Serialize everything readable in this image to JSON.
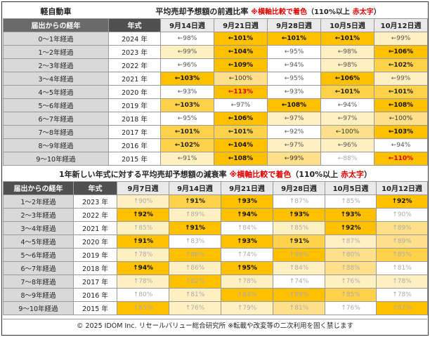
{
  "table1": {
    "category": "軽自動車",
    "title": "平均売却予想額の前週比率",
    "note_prefix": "※横軸比較で着色",
    "note_suffix_open": "（110%以上",
    "note_red": "赤太字",
    "note_suffix_close": "）",
    "col_elapsed": "届出からの経年",
    "col_year": "年式",
    "weeks": [
      "9月14日週",
      "9月21日週",
      "9月28日週",
      "10月5日週",
      "10月12日週"
    ],
    "rows": [
      {
        "elapsed": "0～1年経過",
        "year": "2024 年",
        "cells": [
          {
            "t": "←98%",
            "c": 1,
            "s": ""
          },
          {
            "t": "←101%",
            "c": 5,
            "s": "b"
          },
          {
            "t": "←101%",
            "c": 5,
            "s": "b"
          },
          {
            "t": "←101%",
            "c": 5,
            "s": "b"
          },
          {
            "t": "←99%",
            "c": 2,
            "s": ""
          }
        ]
      },
      {
        "elapsed": "1～2年経過",
        "year": "2023 年",
        "cells": [
          {
            "t": "←99%",
            "c": 2,
            "s": ""
          },
          {
            "t": "←104%",
            "c": 5,
            "s": "b"
          },
          {
            "t": "←95%",
            "c": 1,
            "s": ""
          },
          {
            "t": "←98%",
            "c": 2,
            "s": ""
          },
          {
            "t": "←106%",
            "c": 5,
            "s": "b"
          }
        ]
      },
      {
        "elapsed": "2～3年経過",
        "year": "2022 年",
        "cells": [
          {
            "t": "←96%",
            "c": 1,
            "s": ""
          },
          {
            "t": "←109%",
            "c": 5,
            "s": "b"
          },
          {
            "t": "←94%",
            "c": 1,
            "s": ""
          },
          {
            "t": "←98%",
            "c": 2,
            "s": ""
          },
          {
            "t": "←102%",
            "c": 4,
            "s": "b"
          }
        ]
      },
      {
        "elapsed": "3～4年経過",
        "year": "2021 年",
        "cells": [
          {
            "t": "←103%",
            "c": 5,
            "s": "b"
          },
          {
            "t": "←100%",
            "c": 3,
            "s": ""
          },
          {
            "t": "←95%",
            "c": 1,
            "s": ""
          },
          {
            "t": "←106%",
            "c": 5,
            "s": "b"
          },
          {
            "t": "←99%",
            "c": 2,
            "s": ""
          }
        ]
      },
      {
        "elapsed": "4～5年経過",
        "year": "2020 年",
        "cells": [
          {
            "t": "←93%",
            "c": 1,
            "s": ""
          },
          {
            "t": "←113%",
            "c": 5,
            "s": "r"
          },
          {
            "t": "←93%",
            "c": 1,
            "s": ""
          },
          {
            "t": "←101%",
            "c": 4,
            "s": "b"
          },
          {
            "t": "←101%",
            "c": 4,
            "s": "b"
          }
        ]
      },
      {
        "elapsed": "5～6年経過",
        "year": "2019 年",
        "cells": [
          {
            "t": "←103%",
            "c": 4,
            "s": "b"
          },
          {
            "t": "←97%",
            "c": 1,
            "s": ""
          },
          {
            "t": "←108%",
            "c": 5,
            "s": "b"
          },
          {
            "t": "←94%",
            "c": 1,
            "s": ""
          },
          {
            "t": "←108%",
            "c": 5,
            "s": "b"
          }
        ]
      },
      {
        "elapsed": "6～7年経過",
        "year": "2018 年",
        "cells": [
          {
            "t": "←95%",
            "c": 1,
            "s": ""
          },
          {
            "t": "←106%",
            "c": 5,
            "s": "b"
          },
          {
            "t": "←97%",
            "c": 2,
            "s": ""
          },
          {
            "t": "←97%",
            "c": 2,
            "s": ""
          },
          {
            "t": "←100%",
            "c": 3,
            "s": ""
          }
        ]
      },
      {
        "elapsed": "7～8年経過",
        "year": "2017 年",
        "cells": [
          {
            "t": "←101%",
            "c": 4,
            "s": "b"
          },
          {
            "t": "←101%",
            "c": 4,
            "s": "b"
          },
          {
            "t": "←92%",
            "c": 1,
            "s": ""
          },
          {
            "t": "←100%",
            "c": 3,
            "s": ""
          },
          {
            "t": "←103%",
            "c": 5,
            "s": "b"
          }
        ]
      },
      {
        "elapsed": "8～9年経過",
        "year": "2016 年",
        "cells": [
          {
            "t": "←102%",
            "c": 4,
            "s": "b"
          },
          {
            "t": "←104%",
            "c": 5,
            "s": "b"
          },
          {
            "t": "←97%",
            "c": 2,
            "s": ""
          },
          {
            "t": "←96%",
            "c": 2,
            "s": ""
          },
          {
            "t": "←94%",
            "c": 1,
            "s": ""
          }
        ]
      },
      {
        "elapsed": "9～10年経過",
        "year": "2015 年",
        "cells": [
          {
            "t": "←91%",
            "c": 2,
            "s": ""
          },
          {
            "t": "←108%",
            "c": 5,
            "s": "b"
          },
          {
            "t": "←99%",
            "c": 3,
            "s": ""
          },
          {
            "t": "←88%",
            "c": 1,
            "s": "f"
          },
          {
            "t": "←110%",
            "c": 5,
            "s": "r"
          }
        ]
      }
    ]
  },
  "table2": {
    "title": "1年新しい年式に対する平均売却予想額の減衰率",
    "note_prefix": "※横軸比較で着色",
    "note_suffix_open": "（110%以上",
    "note_red": "赤太字",
    "note_suffix_close": "）",
    "col_elapsed": "届出からの経年",
    "col_year": "年式",
    "weeks": [
      "9月7日週",
      "9月14日週",
      "9月21日週",
      "9月28日週",
      "10月5日週",
      "10月12日週"
    ],
    "rows": [
      {
        "elapsed": "1～2年経過",
        "year": "2023 年",
        "cells": [
          {
            "t": "↑90%",
            "c": 2,
            "s": "f"
          },
          {
            "t": "↑91%",
            "c": 4,
            "s": "b"
          },
          {
            "t": "↑93%",
            "c": 5,
            "s": "b"
          },
          {
            "t": "↑87%",
            "c": 1,
            "s": "f"
          },
          {
            "t": "↑85%",
            "c": 1,
            "s": "f"
          },
          {
            "t": "↑92%",
            "c": 5,
            "s": "b"
          }
        ]
      },
      {
        "elapsed": "2～3年経過",
        "year": "2022 年",
        "cells": [
          {
            "t": "↑92%",
            "c": 5,
            "s": "b"
          },
          {
            "t": "↑89%",
            "c": 2,
            "s": "f"
          },
          {
            "t": "↑94%",
            "c": 5,
            "s": "b"
          },
          {
            "t": "↑93%",
            "c": 5,
            "s": "b"
          },
          {
            "t": "↑93%",
            "c": 5,
            "s": "b"
          },
          {
            "t": "↑90%",
            "c": 1,
            "s": "f"
          }
        ]
      },
      {
        "elapsed": "3～4年経過",
        "year": "2021 年",
        "cells": [
          {
            "t": "↑85%",
            "c": 2,
            "s": "f"
          },
          {
            "t": "↑91%",
            "c": 5,
            "s": "b"
          },
          {
            "t": "↑84%",
            "c": 1,
            "s": "f"
          },
          {
            "t": "↑85%",
            "c": 2,
            "s": "f"
          },
          {
            "t": "↑92%",
            "c": 5,
            "s": "b"
          },
          {
            "t": "↑89%",
            "c": 3,
            "s": "f"
          }
        ]
      },
      {
        "elapsed": "4～5年経過",
        "year": "2020 年",
        "cells": [
          {
            "t": "↑91%",
            "c": 5,
            "s": "b"
          },
          {
            "t": "↑83%",
            "c": 1,
            "s": "f"
          },
          {
            "t": "↑93%",
            "c": 5,
            "s": "b"
          },
          {
            "t": "↑91%",
            "c": 4,
            "s": "b"
          },
          {
            "t": "↑87%",
            "c": 2,
            "s": "f"
          },
          {
            "t": "↑89%",
            "c": 3,
            "s": "f"
          }
        ]
      },
      {
        "elapsed": "5～6年経過",
        "year": "2019 年",
        "cells": [
          {
            "t": "↑78%",
            "c": 2,
            "s": "f"
          },
          {
            "t": "↑86%",
            "c": 5,
            "s": "f"
          },
          {
            "t": "↑74%",
            "c": 1,
            "s": "f"
          },
          {
            "t": "↑86%",
            "c": 5,
            "s": "f"
          },
          {
            "t": "↑80%",
            "c": 3,
            "s": "f"
          },
          {
            "t": "↑85%",
            "c": 4,
            "s": "f"
          }
        ]
      },
      {
        "elapsed": "6～7年経過",
        "year": "2018 年",
        "cells": [
          {
            "t": "↑94%",
            "c": 5,
            "s": "b"
          },
          {
            "t": "↑86%",
            "c": 2,
            "s": "f"
          },
          {
            "t": "↑95%",
            "c": 5,
            "s": "b"
          },
          {
            "t": "↑84%",
            "c": 2,
            "s": "f"
          },
          {
            "t": "↑88%",
            "c": 3,
            "s": "f"
          },
          {
            "t": "↑81%",
            "c": 1,
            "s": "f"
          }
        ]
      },
      {
        "elapsed": "7～8年経過",
        "year": "2017 年",
        "cells": [
          {
            "t": "↑78%",
            "c": 2,
            "s": "f"
          },
          {
            "t": "↑82%",
            "c": 5,
            "s": "f"
          },
          {
            "t": "↑78%",
            "c": 2,
            "s": "f"
          },
          {
            "t": "↑74%",
            "c": 1,
            "s": "f"
          },
          {
            "t": "↑76%",
            "c": 2,
            "s": "f"
          },
          {
            "t": "↑78%",
            "c": 2,
            "s": "f"
          }
        ]
      },
      {
        "elapsed": "8～9年経過",
        "year": "2016 年",
        "cells": [
          {
            "t": "↑80%",
            "c": 1,
            "s": "f"
          },
          {
            "t": "↑81%",
            "c": 2,
            "s": "f"
          },
          {
            "t": "↑84%",
            "c": 5,
            "s": "f"
          },
          {
            "t": "↑89%",
            "c": 5,
            "s": "f"
          },
          {
            "t": "↑85%",
            "c": 4,
            "s": "f"
          },
          {
            "t": "↑78%",
            "c": 1,
            "s": "f"
          }
        ]
      },
      {
        "elapsed": "9～10年経過",
        "year": "2015 年",
        "cells": [
          {
            "t": "↑85%",
            "c": 5,
            "s": "f"
          },
          {
            "t": "↑76%",
            "c": 2,
            "s": "f"
          },
          {
            "t": "↑79%",
            "c": 2,
            "s": "f"
          },
          {
            "t": "↑81%",
            "c": 3,
            "s": "f"
          },
          {
            "t": "↑76%",
            "c": 1,
            "s": "f"
          },
          {
            "t": "↑87%",
            "c": 5,
            "s": "f"
          }
        ]
      }
    ]
  },
  "footer": "© 2025 IDOM Inc. リセールバリュー総合研究所 ※転載や改変等の二次利用を固く禁じます"
}
